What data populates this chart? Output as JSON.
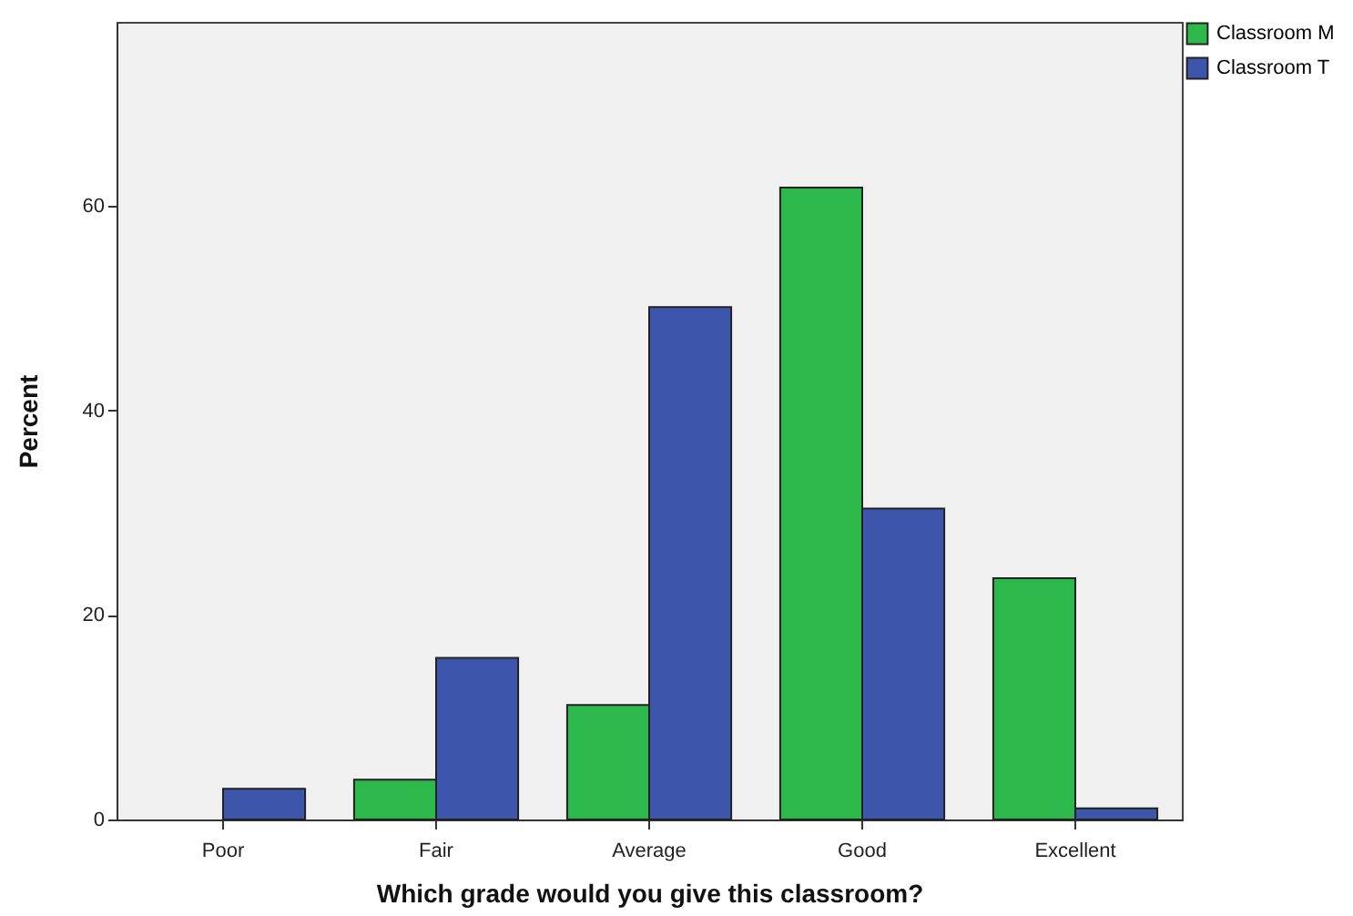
{
  "chart_data": {
    "type": "bar",
    "xlabel": "Which grade would you give this classroom?",
    "ylabel": "Percent",
    "categories": [
      "Poor",
      "Fair",
      "Average",
      "Good",
      "Excellent"
    ],
    "series": [
      {
        "name": "Classroom M",
        "color": "#2db84b",
        "values": [
          null,
          3.9,
          11.2,
          61.8,
          23.6
        ]
      },
      {
        "name": "Classroom T",
        "color": "#3d56ab",
        "values": [
          3.0,
          15.8,
          50.1,
          30.4,
          1.1
        ]
      }
    ],
    "ylim": [
      0,
      78
    ],
    "yticks": [
      0,
      20,
      40,
      60
    ],
    "grid": false,
    "legend": "top right"
  }
}
